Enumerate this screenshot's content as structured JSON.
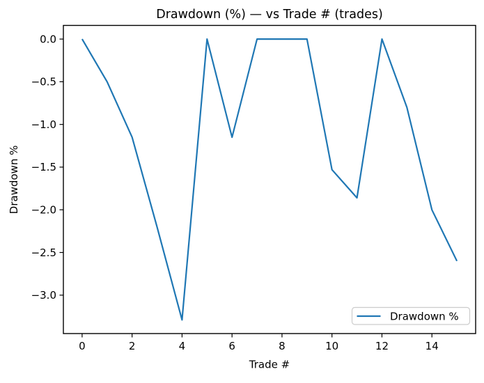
{
  "chart_data": {
    "type": "line",
    "title": "Drawdown (%) — vs Trade # (trades)",
    "xlabel": "Trade #",
    "ylabel": "Drawdown %",
    "x": [
      0,
      1,
      2,
      3,
      4,
      5,
      6,
      7,
      8,
      9,
      10,
      11,
      12,
      13,
      14,
      15
    ],
    "series": [
      {
        "name": "Drawdown %",
        "color": "#1f77b4",
        "values": [
          0.0,
          -0.5,
          -1.15,
          -2.2,
          -3.29,
          0.0,
          -1.15,
          0.0,
          0.0,
          0.0,
          -1.53,
          -1.86,
          0.0,
          -0.8,
          -2.0,
          -2.6
        ]
      }
    ],
    "xlim": [
      -0.75,
      15.75
    ],
    "ylim": [
      -3.45,
      0.16
    ],
    "xticks": {
      "values": [
        0,
        2,
        4,
        6,
        8,
        10,
        12,
        14
      ],
      "labels": [
        "0",
        "2",
        "4",
        "6",
        "8",
        "10",
        "12",
        "14"
      ]
    },
    "yticks": {
      "values": [
        0.0,
        -0.5,
        -1.0,
        -1.5,
        -2.0,
        -2.5,
        -3.0
      ],
      "labels": [
        "0.0",
        "−0.5",
        "−1.0",
        "−1.5",
        "−2.0",
        "−2.5",
        "−3.0"
      ]
    },
    "grid": false,
    "legend": {
      "position": "lower right",
      "entries": [
        {
          "label": "Drawdown %",
          "color": "#1f77b4"
        }
      ]
    },
    "colors": {
      "line": "#1f77b4",
      "axes": "#000000",
      "text": "#000000",
      "legend_border": "#cccccc",
      "background": "#ffffff"
    }
  }
}
